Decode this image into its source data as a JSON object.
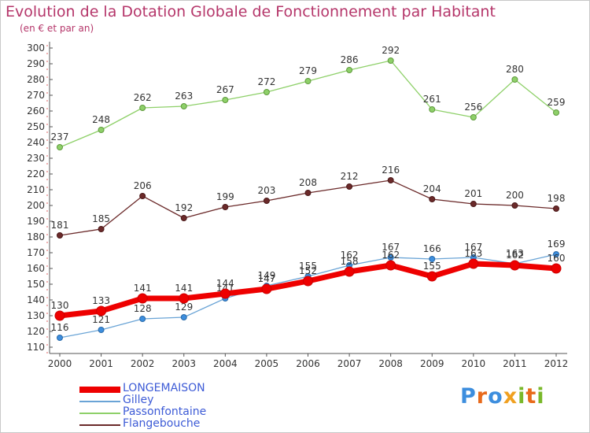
{
  "title": "Evolution de la Dotation Globale de Fonctionnement par Habitant",
  "subtitle": "(en € et par an)",
  "logo": {
    "text": "Proxiti",
    "colors": [
      "#3d8ede",
      "#e86a1b",
      "#3d8ede",
      "#f0a020",
      "#79b82a",
      "#e86a1b",
      "#79b82a"
    ]
  },
  "chart_data": {
    "type": "line",
    "title": "Evolution de la Dotation Globale de Fonctionnement par Habitant",
    "subtitle": "(en € et par an)",
    "x": [
      "2000",
      "2001",
      "2002",
      "2003",
      "2004",
      "2005",
      "2006",
      "2007",
      "2008",
      "2009",
      "2010",
      "2011",
      "2012"
    ],
    "ylim": [
      110,
      300
    ],
    "yticks": [
      110,
      120,
      130,
      140,
      150,
      160,
      170,
      180,
      190,
      200,
      210,
      220,
      230,
      240,
      250,
      260,
      270,
      280,
      290,
      300
    ],
    "grid": false,
    "legend_position": "bottom-left",
    "series": [
      {
        "name": "Passonfontaine",
        "color": "#8ed069",
        "values": [
          237,
          248,
          262,
          263,
          267,
          272,
          279,
          286,
          292,
          261,
          256,
          280,
          259
        ]
      },
      {
        "name": "Flangebouche",
        "color": "#6b2a2a",
        "values": [
          181,
          185,
          206,
          192,
          199,
          203,
          208,
          212,
          216,
          204,
          201,
          200,
          198
        ]
      },
      {
        "name": "Gilley",
        "color": "#6aa4d6",
        "values": [
          116,
          121,
          128,
          129,
          141,
          149,
          155,
          162,
          167,
          166,
          167,
          163,
          169
        ]
      },
      {
        "name": "LONGEMAISON",
        "color": "#ee0000",
        "values": [
          130,
          133,
          141,
          141,
          144,
          147,
          152,
          158,
          162,
          155,
          163,
          162,
          160
        ]
      }
    ],
    "legend_order": [
      "LONGEMAISON",
      "Gilley",
      "Passonfontaine",
      "Flangebouche"
    ]
  }
}
